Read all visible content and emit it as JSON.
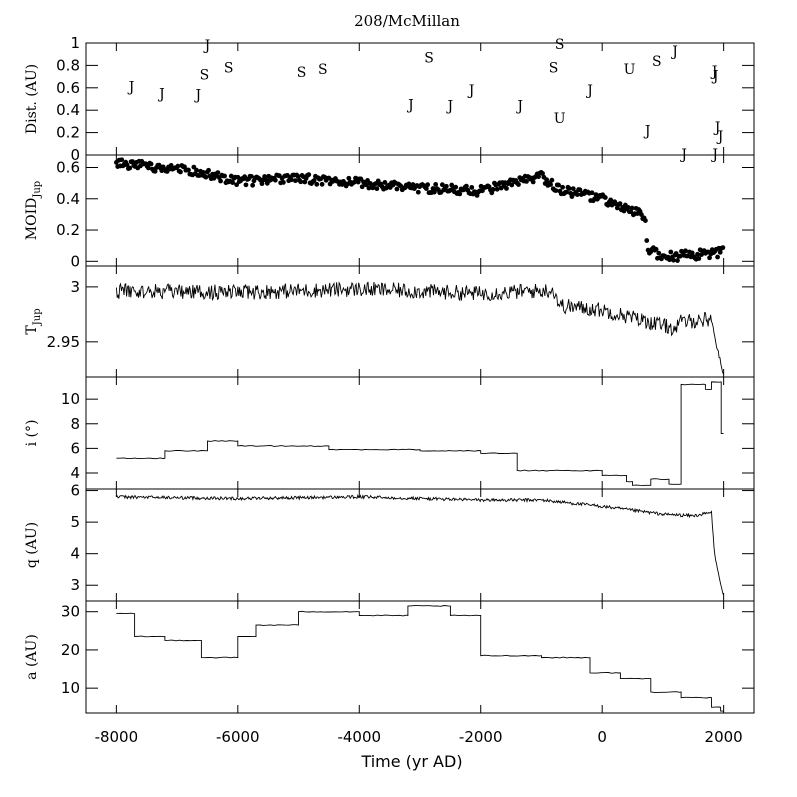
{
  "chart_data": {
    "type": "multi-panel",
    "title": "208/McMillan",
    "xlabel": "Time (yr AD)",
    "xlim": [
      -8500,
      2500
    ],
    "xticks": [
      -8000,
      -6000,
      -4000,
      -2000,
      0,
      2000
    ],
    "xtick_labels": [
      "-8000",
      "-6000",
      "-4000",
      "-2000",
      "0",
      "2000"
    ],
    "panels": [
      {
        "type": "scatter-labels",
        "ylabel": "Dist. (AU)",
        "ylim": [
          0,
          1
        ],
        "yticks": [
          0,
          0.2,
          0.4,
          0.6,
          0.8,
          1
        ],
        "ytick_labels": [
          "0",
          "0.2",
          "0.4",
          "0.6",
          "0.8",
          "1"
        ],
        "points": [
          {
            "x": -7750,
            "y": 0.61,
            "label": "J"
          },
          {
            "x": -7250,
            "y": 0.55,
            "label": "J"
          },
          {
            "x": -6650,
            "y": 0.54,
            "label": "J"
          },
          {
            "x": -6500,
            "y": 0.98,
            "label": "J"
          },
          {
            "x": -6550,
            "y": 0.72,
            "label": "S"
          },
          {
            "x": -6150,
            "y": 0.78,
            "label": "S"
          },
          {
            "x": -4950,
            "y": 0.74,
            "label": "S"
          },
          {
            "x": -4600,
            "y": 0.77,
            "label": "S"
          },
          {
            "x": -3150,
            "y": 0.45,
            "label": "J"
          },
          {
            "x": -2850,
            "y": 0.87,
            "label": "S"
          },
          {
            "x": -2500,
            "y": 0.44,
            "label": "J"
          },
          {
            "x": -2150,
            "y": 0.58,
            "label": "J"
          },
          {
            "x": -1350,
            "y": 0.44,
            "label": "J"
          },
          {
            "x": -800,
            "y": 0.78,
            "label": "S"
          },
          {
            "x": -700,
            "y": 0.99,
            "label": "S"
          },
          {
            "x": -700,
            "y": 0.33,
            "label": "U"
          },
          {
            "x": -200,
            "y": 0.58,
            "label": "J"
          },
          {
            "x": 450,
            "y": 0.77,
            "label": "U"
          },
          {
            "x": 750,
            "y": 0.22,
            "label": "J"
          },
          {
            "x": 900,
            "y": 0.84,
            "label": "S"
          },
          {
            "x": 1200,
            "y": 0.93,
            "label": "J"
          },
          {
            "x": 1350,
            "y": 0.01,
            "label": "J"
          },
          {
            "x": 1850,
            "y": 0.75,
            "label": "J"
          },
          {
            "x": 1870,
            "y": 0.71,
            "label": "J"
          },
          {
            "x": 1900,
            "y": 0.25,
            "label": "J"
          },
          {
            "x": 1950,
            "y": 0.17,
            "label": "J"
          },
          {
            "x": 1860,
            "y": 0.01,
            "label": "J"
          }
        ]
      },
      {
        "type": "scatter",
        "ylabel": "MOID",
        "ylabel_sub": "Jup",
        "ylim": [
          -0.03,
          0.68
        ],
        "yticks": [
          0,
          0.2,
          0.4,
          0.6
        ],
        "ytick_labels": [
          "0",
          "0.2",
          "0.4",
          "0.6"
        ],
        "anchors": [
          [
            -8000,
            0.63
          ],
          [
            -7000,
            0.59
          ],
          [
            -6500,
            0.56
          ],
          [
            -6000,
            0.51
          ],
          [
            -5000,
            0.53
          ],
          [
            -4000,
            0.5
          ],
          [
            -3000,
            0.47
          ],
          [
            -2000,
            0.45
          ],
          [
            -1000,
            0.54
          ],
          [
            -700,
            0.46
          ],
          [
            0,
            0.4
          ],
          [
            400,
            0.33
          ],
          [
            700,
            0.29
          ],
          [
            750,
            0.08
          ],
          [
            1000,
            0.03
          ],
          [
            1500,
            0.04
          ],
          [
            2000,
            0.06
          ]
        ],
        "jitter": 0.03
      },
      {
        "type": "line",
        "ylabel": "T",
        "ylabel_sub": "Jup",
        "ylim": [
          2.918,
          3.019
        ],
        "yticks": [
          3,
          2.95
        ],
        "ytick_labels": [
          "3",
          "2.95"
        ],
        "anchors": [
          [
            -8000,
            2.996
          ],
          [
            -6000,
            2.995
          ],
          [
            -4000,
            2.998
          ],
          [
            -2000,
            2.994
          ],
          [
            -800,
            2.997
          ],
          [
            -700,
            2.983
          ],
          [
            0,
            2.979
          ],
          [
            500,
            2.972
          ],
          [
            1200,
            2.962
          ],
          [
            1300,
            2.968
          ],
          [
            1800,
            2.971
          ],
          [
            1870,
            2.95
          ],
          [
            1990,
            2.922
          ]
        ],
        "jitter": 0.007
      },
      {
        "type": "line",
        "ylabel": "i (°)",
        "ylim": [
          2.7,
          11.8
        ],
        "yticks": [
          4,
          6,
          8,
          10
        ],
        "ytick_labels": [
          "4",
          "6",
          "8",
          "10"
        ],
        "steps": [
          [
            -8000,
            5.2
          ],
          [
            -7200,
            5.8
          ],
          [
            -6500,
            6.6
          ],
          [
            -6000,
            6.2
          ],
          [
            -4500,
            5.9
          ],
          [
            -3000,
            5.8
          ],
          [
            -2000,
            5.6
          ],
          [
            -1400,
            4.2
          ],
          [
            0,
            3.8
          ],
          [
            400,
            3.3
          ],
          [
            500,
            3.0
          ],
          [
            800,
            3.5
          ],
          [
            1100,
            3.1
          ],
          [
            1300,
            11.2
          ],
          [
            1700,
            10.8
          ],
          [
            1800,
            11.4
          ],
          [
            1960,
            7.2
          ]
        ]
      },
      {
        "type": "line",
        "ylabel": "q (AU)",
        "ylim": [
          2.5,
          6.05
        ],
        "yticks": [
          3,
          4,
          5,
          6
        ],
        "ytick_labels": [
          "3",
          "4",
          "5",
          "6"
        ],
        "anchors": [
          [
            -8000,
            5.8
          ],
          [
            -6000,
            5.75
          ],
          [
            -4000,
            5.8
          ],
          [
            -2000,
            5.7
          ],
          [
            -1000,
            5.7
          ],
          [
            0,
            5.5
          ],
          [
            1000,
            5.25
          ],
          [
            1500,
            5.2
          ],
          [
            1800,
            5.3
          ],
          [
            1850,
            4.0
          ],
          [
            1900,
            3.5
          ],
          [
            1990,
            2.7
          ]
        ],
        "jitter": 0.05
      },
      {
        "type": "line",
        "ylabel": "a (AU)",
        "ylim": [
          3.5,
          32.8
        ],
        "yticks": [
          10,
          20,
          30
        ],
        "ytick_labels": [
          "10",
          "20",
          "30"
        ],
        "steps": [
          [
            -8000,
            29.5
          ],
          [
            -7700,
            23.5
          ],
          [
            -7200,
            22.5
          ],
          [
            -6600,
            18.0
          ],
          [
            -6000,
            23.5
          ],
          [
            -5700,
            26.5
          ],
          [
            -5000,
            30.0
          ],
          [
            -4000,
            29.0
          ],
          [
            -3200,
            31.5
          ],
          [
            -2500,
            29.0
          ],
          [
            -2000,
            18.5
          ],
          [
            -1000,
            18.0
          ],
          [
            -200,
            14.0
          ],
          [
            300,
            12.5
          ],
          [
            800,
            9.0
          ],
          [
            1300,
            7.5
          ],
          [
            1800,
            5.0
          ],
          [
            1950,
            4.0
          ]
        ]
      }
    ]
  }
}
